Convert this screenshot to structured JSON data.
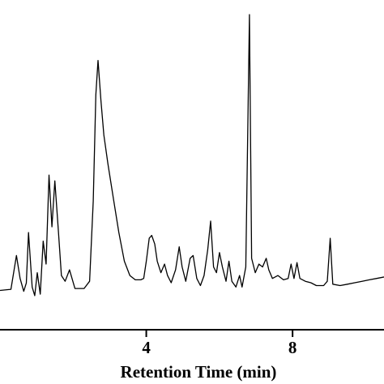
{
  "chart_data": {
    "type": "line",
    "title": "",
    "xlabel": "Retention Time (min)",
    "ylabel": "",
    "xlim": [
      0.0,
      10.5
    ],
    "ylim": [
      0,
      100
    ],
    "x_ticks": [
      4,
      8
    ],
    "x_tick_labels": [
      "4",
      "8"
    ],
    "grid": false,
    "series": [
      {
        "points": [
          [
            0.0,
            3.8
          ],
          [
            0.3,
            4.2
          ],
          [
            0.45,
            16
          ],
          [
            0.55,
            8
          ],
          [
            0.65,
            3.5
          ],
          [
            0.72,
            6.4
          ],
          [
            0.78,
            24
          ],
          [
            0.88,
            5
          ],
          [
            0.95,
            2
          ],
          [
            1.02,
            10
          ],
          [
            1.1,
            2.5
          ],
          [
            1.18,
            21
          ],
          [
            1.26,
            13
          ],
          [
            1.34,
            44
          ],
          [
            1.42,
            26
          ],
          [
            1.5,
            42
          ],
          [
            1.6,
            24
          ],
          [
            1.68,
            9
          ],
          [
            1.78,
            7
          ],
          [
            1.9,
            11
          ],
          [
            2.05,
            4.5
          ],
          [
            2.3,
            4.5
          ],
          [
            2.45,
            7
          ],
          [
            2.55,
            35
          ],
          [
            2.62,
            72
          ],
          [
            2.68,
            84
          ],
          [
            2.76,
            70
          ],
          [
            2.84,
            58
          ],
          [
            2.95,
            48
          ],
          [
            3.1,
            36
          ],
          [
            3.25,
            24
          ],
          [
            3.4,
            14
          ],
          [
            3.55,
            9
          ],
          [
            3.7,
            7.5
          ],
          [
            3.85,
            7.5
          ],
          [
            3.93,
            8
          ],
          [
            4.0,
            14
          ],
          [
            4.08,
            22
          ],
          [
            4.15,
            23
          ],
          [
            4.23,
            20
          ],
          [
            4.3,
            14
          ],
          [
            4.4,
            10
          ],
          [
            4.5,
            13
          ],
          [
            4.58,
            9
          ],
          [
            4.68,
            6.5
          ],
          [
            4.8,
            11
          ],
          [
            4.9,
            19
          ],
          [
            4.98,
            12
          ],
          [
            5.08,
            7
          ],
          [
            5.2,
            15
          ],
          [
            5.28,
            16
          ],
          [
            5.38,
            8
          ],
          [
            5.48,
            5.5
          ],
          [
            5.58,
            9
          ],
          [
            5.68,
            18
          ],
          [
            5.76,
            28
          ],
          [
            5.84,
            12
          ],
          [
            5.92,
            10
          ],
          [
            6.0,
            17
          ],
          [
            6.08,
            12
          ],
          [
            6.18,
            7
          ],
          [
            6.26,
            14
          ],
          [
            6.34,
            7
          ],
          [
            6.45,
            5
          ],
          [
            6.55,
            9
          ],
          [
            6.62,
            5
          ],
          [
            6.72,
            12
          ],
          [
            6.82,
            100
          ],
          [
            6.88,
            15
          ],
          [
            6.98,
            10
          ],
          [
            7.08,
            13
          ],
          [
            7.18,
            12
          ],
          [
            7.28,
            15
          ],
          [
            7.35,
            11
          ],
          [
            7.45,
            8
          ],
          [
            7.6,
            9
          ],
          [
            7.75,
            7.5
          ],
          [
            7.88,
            8
          ],
          [
            7.96,
            13
          ],
          [
            8.04,
            8
          ],
          [
            8.12,
            13.5
          ],
          [
            8.2,
            8
          ],
          [
            8.35,
            7
          ],
          [
            8.5,
            6.5
          ],
          [
            8.65,
            5.5
          ],
          [
            8.85,
            5.5
          ],
          [
            8.95,
            7
          ],
          [
            9.03,
            22
          ],
          [
            9.1,
            6
          ],
          [
            9.3,
            5.5
          ],
          [
            9.5,
            6
          ],
          [
            9.7,
            6.5
          ],
          [
            9.9,
            7
          ],
          [
            10.1,
            7.5
          ],
          [
            10.3,
            8
          ],
          [
            10.5,
            8.5
          ]
        ]
      }
    ]
  }
}
